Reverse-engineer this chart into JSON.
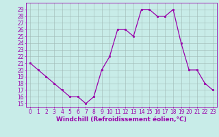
{
  "x": [
    0,
    1,
    2,
    3,
    4,
    5,
    6,
    7,
    8,
    9,
    10,
    11,
    12,
    13,
    14,
    15,
    16,
    17,
    18,
    19,
    20,
    21,
    22,
    23
  ],
  "y": [
    21,
    20,
    19,
    18,
    17,
    16,
    16,
    15,
    16,
    20,
    22,
    26,
    26,
    25,
    29,
    29,
    28,
    28,
    29,
    24,
    20,
    20,
    18,
    17
  ],
  "line_color": "#9900aa",
  "marker": "o",
  "marker_size": 1.8,
  "marker_color": "#9900aa",
  "bg_color": "#c8ece8",
  "grid_color": "#a0b8b4",
  "xlabel": "Windchill (Refroidissement éolien,°C)",
  "xlabel_color": "#9900aa",
  "xlabel_fontsize": 6.5,
  "ylim": [
    14.5,
    30
  ],
  "xlim": [
    -0.5,
    23.5
  ],
  "yticks": [
    15,
    16,
    17,
    18,
    19,
    20,
    21,
    22,
    23,
    24,
    25,
    26,
    27,
    28,
    29
  ],
  "xticks": [
    0,
    1,
    2,
    3,
    4,
    5,
    6,
    7,
    8,
    9,
    10,
    11,
    12,
    13,
    14,
    15,
    16,
    17,
    18,
    19,
    20,
    21,
    22,
    23
  ],
  "tick_fontsize": 5.5,
  "tick_color": "#9900aa",
  "spine_color": "#9900aa",
  "figsize": [
    3.2,
    2.0
  ],
  "dpi": 100
}
